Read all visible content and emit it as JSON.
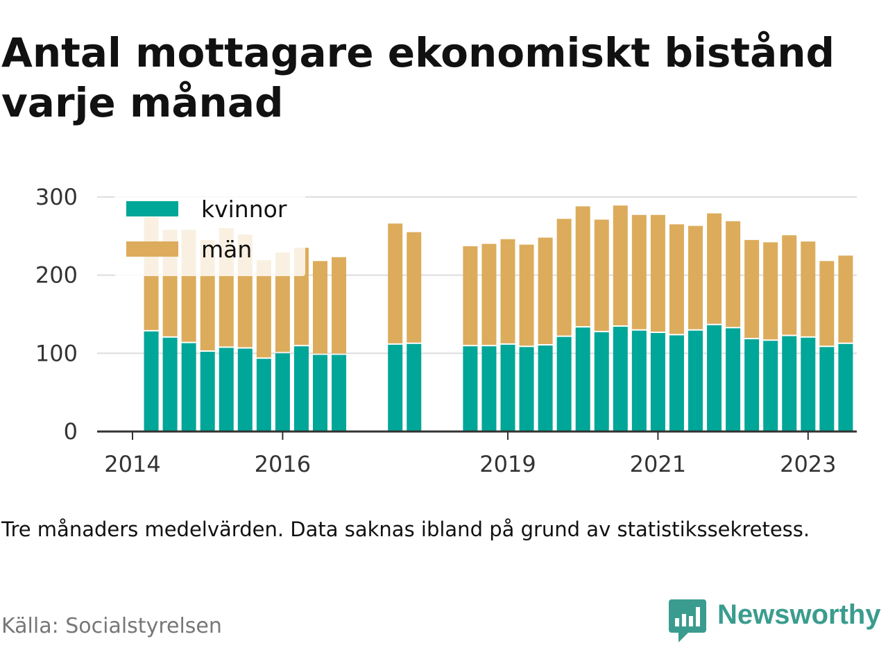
{
  "title": "Antal mottagare ekonomiskt bistånd varje månad",
  "note": "Tre månaders medelvärden. Data saknas ibland på grund av statistikssekretess.",
  "source": "Källa: Socialstyrelsen",
  "brand": {
    "name": "Newsworthy",
    "icon": "newsworthy-logo-icon",
    "color": "#3a9c8e"
  },
  "colors": {
    "kvinnor": "#00a698",
    "man": "#dcac5c",
    "grid": "#dddddd",
    "axis": "#333333"
  },
  "chart_data": {
    "type": "bar",
    "stacked": true,
    "ylim": [
      0,
      300
    ],
    "yticks": [
      0,
      100,
      200,
      300
    ],
    "grid": true,
    "legend": "top-left",
    "xticks": [
      "2014",
      "2016",
      "2019",
      "2021",
      "2023"
    ],
    "series": [
      {
        "name": "kvinnor",
        "color": "#00a698",
        "values": [
          128,
          120,
          113,
          102,
          107,
          106,
          93,
          100,
          109,
          98,
          98,
          111,
          112,
          109,
          109,
          111,
          108,
          110,
          121,
          133,
          127,
          134,
          129,
          126,
          123,
          129,
          136,
          132,
          118,
          116,
          122,
          120,
          108,
          112
        ]
      },
      {
        "name": "män",
        "color": "#dcac5c",
        "values": [
          146,
          138,
          145,
          143,
          153,
          146,
          126,
          129,
          126,
          120,
          125,
          155,
          143,
          128,
          131,
          135,
          131,
          138,
          151,
          155,
          144,
          155,
          148,
          151,
          142,
          134,
          143,
          137,
          127,
          126,
          129,
          123,
          110,
          113
        ]
      }
    ],
    "x": [
      2014.25,
      2014.5,
      2014.75,
      2015.0,
      2015.25,
      2015.5,
      2015.75,
      2016.0,
      2016.25,
      2016.5,
      2016.75,
      2017.5,
      2017.75,
      2018.5,
      2018.75,
      2019.0,
      2019.25,
      2019.5,
      2019.75,
      2020.0,
      2020.25,
      2020.5,
      2020.75,
      2021.0,
      2021.25,
      2021.5,
      2021.75,
      2022.0,
      2022.25,
      2022.5,
      2022.75,
      2023.0,
      2023.25,
      2023.5
    ]
  }
}
